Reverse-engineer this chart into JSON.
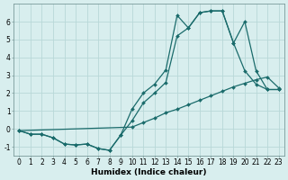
{
  "xlabel": "Humidex (Indice chaleur)",
  "background_color": "#d8eeee",
  "grid_color": "#b8d8d8",
  "line_color": "#1a6b6b",
  "marker": "D",
  "markersize": 2.0,
  "linewidth": 0.9,
  "series": [
    {
      "x": [
        0,
        1,
        2,
        3,
        4,
        5,
        6,
        7,
        8,
        9,
        10,
        11,
        12,
        13,
        14,
        15,
        16,
        17,
        18,
        19,
        20,
        21,
        22,
        23
      ],
      "y": [
        -0.1,
        -0.3,
        -0.3,
        -0.5,
        -0.85,
        -0.9,
        -0.85,
        -1.1,
        -1.2,
        -0.35,
        1.1,
        2.0,
        2.5,
        3.3,
        6.35,
        5.65,
        6.5,
        6.6,
        6.6,
        4.8,
        3.25,
        2.5,
        2.2,
        2.2
      ]
    },
    {
      "x": [
        0,
        1,
        2,
        3,
        4,
        5,
        6,
        7,
        8,
        9,
        10,
        11,
        12,
        13,
        14,
        15,
        16,
        17,
        18,
        19,
        20,
        21,
        22,
        23
      ],
      "y": [
        -0.1,
        -0.3,
        -0.3,
        -0.5,
        -0.85,
        -0.9,
        -0.85,
        -1.1,
        -1.2,
        -0.35,
        0.45,
        1.45,
        2.0,
        2.6,
        5.2,
        5.65,
        6.5,
        6.6,
        6.6,
        4.8,
        6.0,
        3.25,
        2.2,
        2.2
      ]
    },
    {
      "x": [
        0,
        10,
        11,
        12,
        13,
        14,
        15,
        16,
        17,
        18,
        19,
        20,
        21,
        22,
        23
      ],
      "y": [
        -0.1,
        0.1,
        0.35,
        0.6,
        0.9,
        1.1,
        1.35,
        1.6,
        1.85,
        2.1,
        2.35,
        2.55,
        2.75,
        2.9,
        2.3
      ]
    }
  ],
  "xlim": [
    -0.5,
    23.5
  ],
  "ylim": [
    -1.5,
    7.0
  ],
  "xticks": [
    0,
    1,
    2,
    3,
    4,
    5,
    6,
    7,
    8,
    9,
    10,
    11,
    12,
    13,
    14,
    15,
    16,
    17,
    18,
    19,
    20,
    21,
    22,
    23
  ],
  "yticks": [
    -1,
    0,
    1,
    2,
    3,
    4,
    5,
    6
  ],
  "tick_fontsize": 5.5,
  "xlabel_fontsize": 6.5
}
